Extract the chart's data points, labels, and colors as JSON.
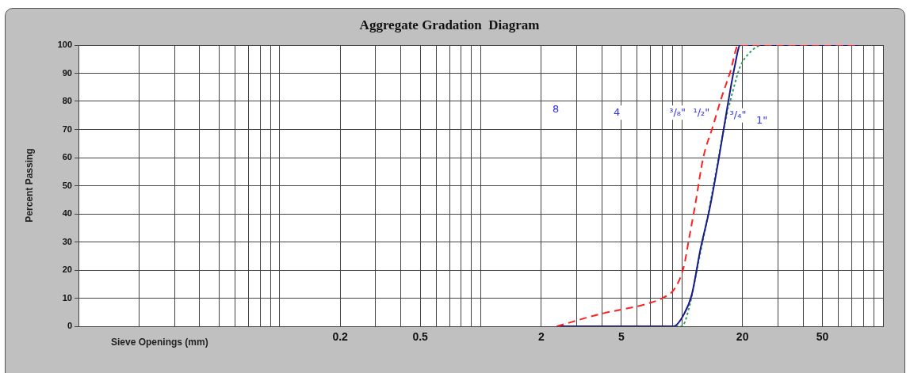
{
  "chart_data": {
    "type": "line",
    "title": "Aggregate Gradation  Diagram",
    "xlabel": "Sieve Openings (mm)",
    "ylabel": "Percent Passing",
    "log": "x",
    "grid": true,
    "legend": false,
    "marker": "none",
    "xlim": [
      0.01,
      100
    ],
    "ylim": [
      0,
      100
    ],
    "xticks": [
      {
        "value": 0.01,
        "label": null
      },
      {
        "value": 0.02,
        "label": null
      },
      {
        "value": 0.03,
        "label": null
      },
      {
        "value": 0.04,
        "label": null
      },
      {
        "value": 0.05,
        "label": null
      },
      {
        "value": 0.06,
        "label": null
      },
      {
        "value": 0.07,
        "label": null
      },
      {
        "value": 0.08,
        "label": null
      },
      {
        "value": 0.09,
        "label": null
      },
      {
        "value": 0.1,
        "label": null
      },
      {
        "value": 0.2,
        "label": "0.2"
      },
      {
        "value": 0.3,
        "label": null
      },
      {
        "value": 0.4,
        "label": null
      },
      {
        "value": 0.5,
        "label": "0.5"
      },
      {
        "value": 0.6,
        "label": null
      },
      {
        "value": 0.7,
        "label": null
      },
      {
        "value": 0.8,
        "label": null
      },
      {
        "value": 0.9,
        "label": null
      },
      {
        "value": 1,
        "label": null
      },
      {
        "value": 2,
        "label": "2"
      },
      {
        "value": 3,
        "label": null
      },
      {
        "value": 4,
        "label": null
      },
      {
        "value": 5,
        "label": "5"
      },
      {
        "value": 6,
        "label": null
      },
      {
        "value": 7,
        "label": null
      },
      {
        "value": 8,
        "label": null
      },
      {
        "value": 9,
        "label": null
      },
      {
        "value": 10,
        "label": null
      },
      {
        "value": 20,
        "label": "20"
      },
      {
        "value": 30,
        "label": null
      },
      {
        "value": 40,
        "label": null
      },
      {
        "value": 50,
        "label": "50"
      },
      {
        "value": 60,
        "label": null
      },
      {
        "value": 70,
        "label": null
      },
      {
        "value": 80,
        "label": null
      },
      {
        "value": 90,
        "label": null
      },
      {
        "value": 100,
        "label": null
      }
    ],
    "yticks": [
      0,
      10,
      20,
      30,
      40,
      50,
      60,
      70,
      80,
      90,
      100
    ],
    "series": [
      {
        "color": "#ff2020",
        "line_style": "dashed",
        "x": [
          2.39,
          4.05,
          4.98,
          6.55,
          8.14,
          9.16,
          10.2,
          10.9,
          11.6,
          12.8,
          14.2,
          15.7,
          17.4,
          19.1,
          75.6
        ],
        "values": [
          0,
          4.6,
          5.9,
          7.8,
          10.3,
          13.2,
          21,
          32,
          42.5,
          60.3,
          70.7,
          81.1,
          90.5,
          100,
          100
        ]
      },
      {
        "color": "#1a1a8c",
        "line_style": "solid",
        "x": [
          2.39,
          9.1,
          10.2,
          11.2,
          12.4,
          13.7,
          15.2,
          16.8,
          18.3,
          19.5,
          75.6
        ],
        "values": [
          0,
          0,
          4.1,
          11.3,
          27.9,
          41.4,
          59,
          77.7,
          92.4,
          100,
          100
        ]
      },
      {
        "color": "#2e9e5e",
        "line_style": "dotted",
        "x": [
          2.39,
          10,
          10.9,
          12,
          13.3,
          14.7,
          16.2,
          18,
          19.5,
          21.2,
          25.1,
          75.6
        ],
        "values": [
          0,
          0,
          7.1,
          21.8,
          37.4,
          54,
          70.7,
          84.2,
          92.4,
          96.5,
          100,
          100
        ]
      }
    ],
    "annotations": [
      {
        "text": "8",
        "x": 2.36,
        "y": 77
      },
      {
        "text": "4",
        "x": 4.75,
        "y": 76
      },
      {
        "text": "³/₈\"",
        "x": 9.5,
        "y": 76
      },
      {
        "text": "¹/₂\"",
        "x": 12.5,
        "y": 76
      },
      {
        "text": "³/₄\"",
        "x": 19,
        "y": 75
      },
      {
        "text": "1\"",
        "x": 25,
        "y": 73
      }
    ]
  }
}
